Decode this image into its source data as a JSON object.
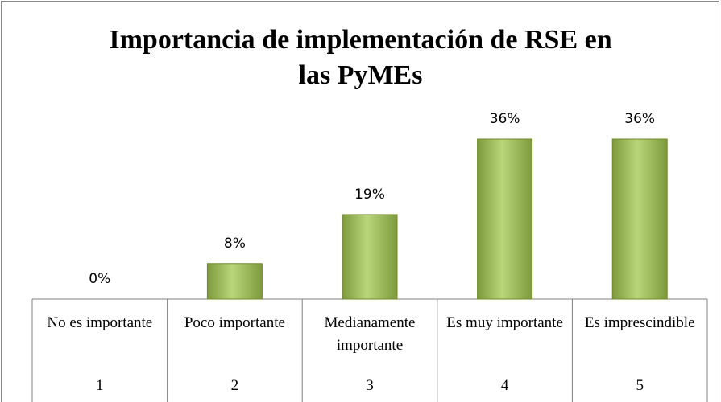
{
  "chart_data": {
    "type": "bar",
    "title": "Importancia de implementación de RSE en las PyMEs",
    "categories": [
      "No es importante",
      "Poco importante",
      "Medianamente importante",
      "Es muy importante",
      "Es imprescindible"
    ],
    "category_numbers": [
      1,
      2,
      3,
      4,
      5
    ],
    "values": [
      0,
      8,
      19,
      36,
      36
    ],
    "value_labels": [
      "0%",
      "8%",
      "19%",
      "36%",
      "36%"
    ],
    "color": "#9bbb59"
  }
}
